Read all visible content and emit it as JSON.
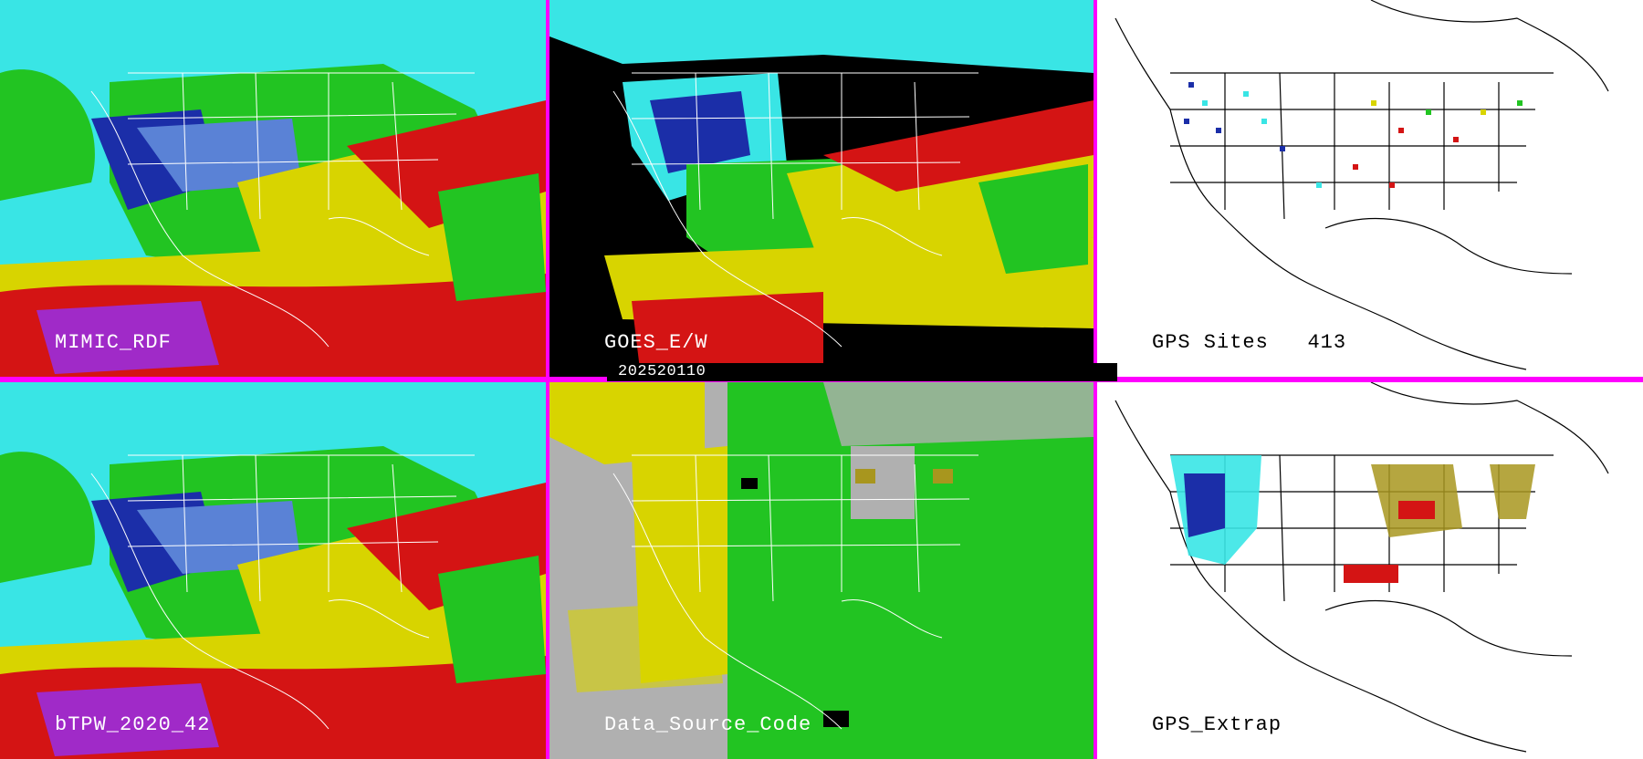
{
  "panels": {
    "mimic": {
      "label": "MIMIC_RDF"
    },
    "goes": {
      "label": "GOES_E/W"
    },
    "gps_sites": {
      "label": "GPS Sites",
      "count": "413"
    },
    "btpw": {
      "label": "bTPW_2020_42"
    },
    "source": {
      "label": "Data_Source_Code"
    },
    "gps_extrap": {
      "label": "GPS_Extrap"
    }
  },
  "date_stamp": "202520110",
  "colors": {
    "border": "#ff00ff",
    "cyan": "#39e5e5",
    "blue": "#1b2ea8",
    "green": "#22c422",
    "yellow": "#d8d400",
    "red": "#d41414",
    "magenta": "#a02ac8",
    "gray": "#b0b0b0",
    "black": "#000000",
    "white": "#ffffff"
  }
}
